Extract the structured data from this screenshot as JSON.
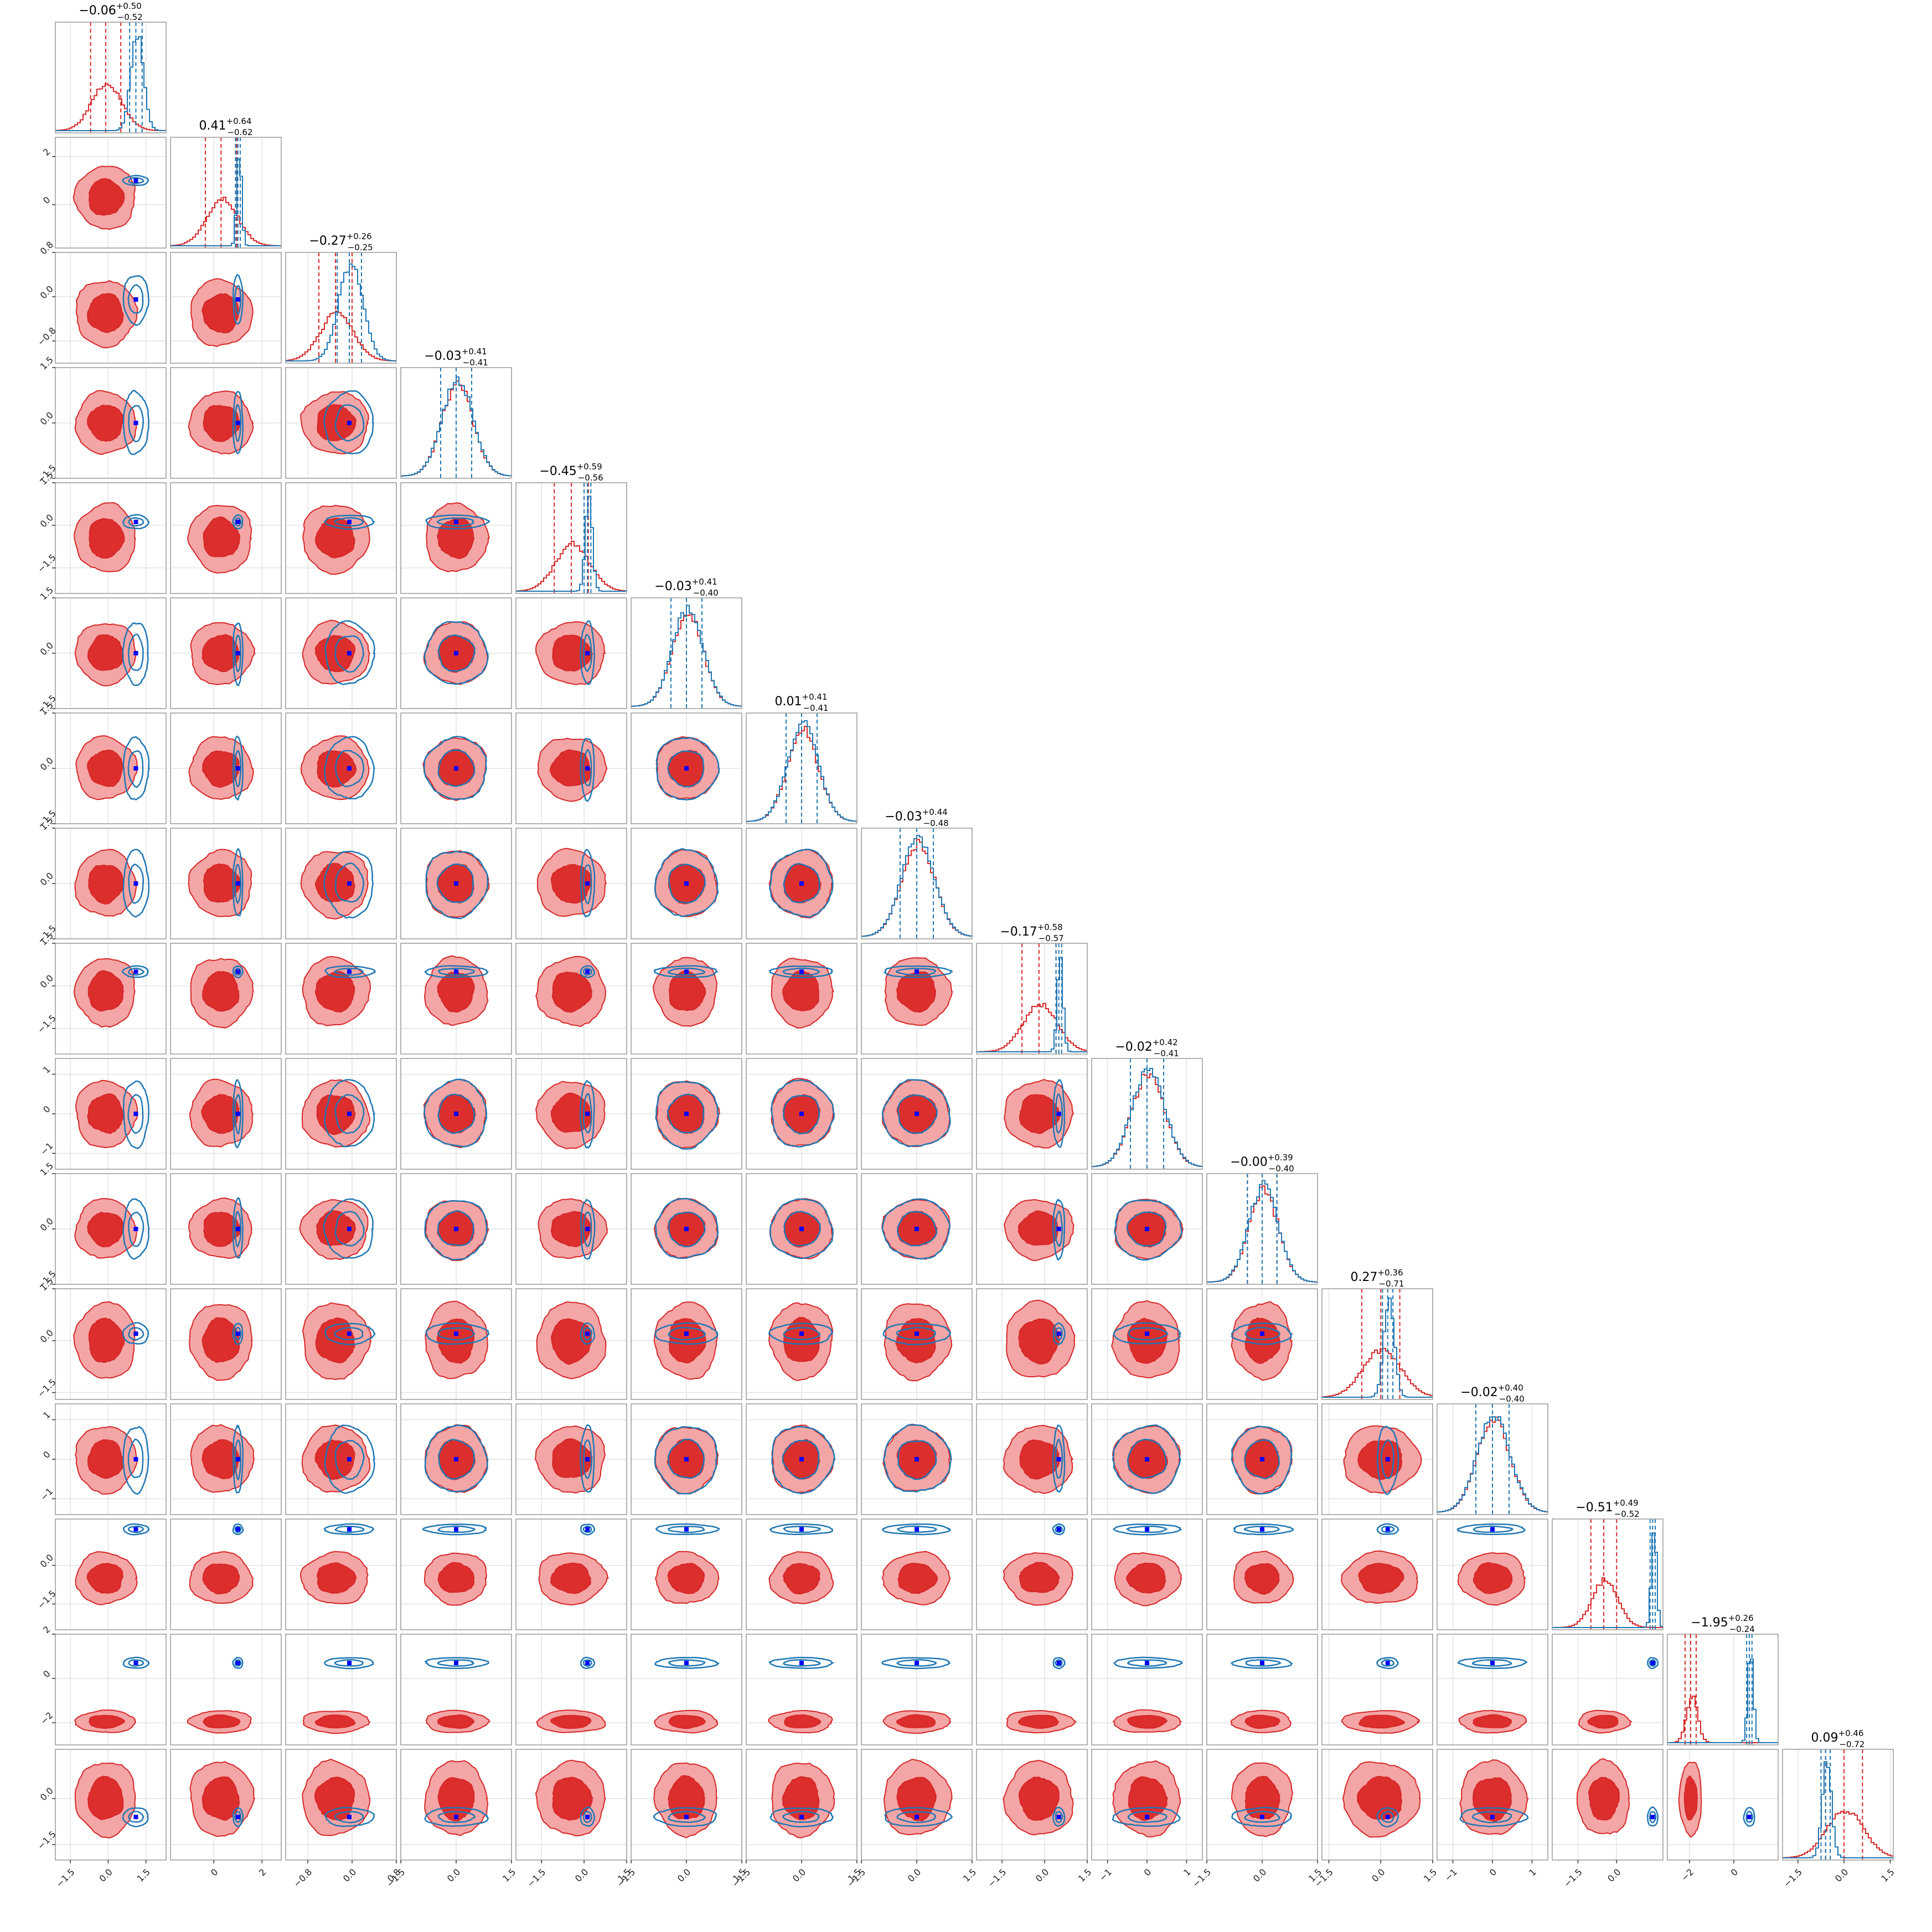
{
  "chart_data": {
    "type": "corner",
    "grid": true,
    "legend": "none",
    "colors": {
      "posterior_a": "#d62728",
      "posterior_b": "#1f77b4",
      "marker": "#0000ff"
    },
    "series": [
      {
        "name": "",
        "color": "#d62728"
      },
      {
        "name": "",
        "color": "#1f77b4"
      }
    ],
    "parameters": [
      {
        "title_median": "−0.06",
        "title_plus": "+0.50",
        "title_minus": "−0.52",
        "range": [
          -2.1,
          2.3
        ],
        "xticks": [
          -1.5,
          0.0,
          1.5
        ],
        "xtick_labels": [
          "−1.5",
          "0.0",
          "1.5"
        ],
        "yticks": [],
        "ytick_labels": [],
        "a": {
          "mu": -0.1,
          "sigma": 0.6
        },
        "b": {
          "mu": 1.1,
          "sigma": 0.25
        }
      },
      {
        "title_median": "0.41",
        "title_plus": "+0.64",
        "title_minus": "−0.62",
        "range": [
          -1.8,
          2.8
        ],
        "xticks": [
          0,
          2
        ],
        "xtick_labels": [
          "0",
          "2"
        ],
        "yticks": [
          2,
          0
        ],
        "ytick_labels": [
          "2",
          "0"
        ],
        "a": {
          "mu": 0.3,
          "sigma": 0.65
        },
        "b": {
          "mu": 1.0,
          "sigma": 0.1
        }
      },
      {
        "title_median": "−0.27",
        "title_plus": "+0.26",
        "title_minus": "−0.25",
        "range": [
          -1.2,
          0.8
        ],
        "xticks": [
          -0.8,
          0.0,
          0.8
        ],
        "xtick_labels": [
          "−0.8",
          "0.0",
          "0.8"
        ],
        "yticks": [
          0.8,
          0.0,
          -0.8
        ],
        "ytick_labels": [
          "0.8",
          "0.0",
          "−0.8"
        ],
        "a": {
          "mu": -0.3,
          "sigma": 0.3
        },
        "b": {
          "mu": -0.05,
          "sigma": 0.22
        }
      },
      {
        "title_median": "−0.03",
        "title_plus": "+0.41",
        "title_minus": "−0.41",
        "range": [
          -1.5,
          1.5
        ],
        "xticks": [
          -1.5,
          0.0,
          1.5
        ],
        "xtick_labels": [
          "−1.5",
          "0.0",
          "1.5"
        ],
        "yticks": [
          1.5,
          0.0,
          -1.5
        ],
        "ytick_labels": [
          "1.5",
          "0.0",
          "−1.5"
        ],
        "a": {
          "mu": 0.0,
          "sigma": 0.42
        },
        "b": {
          "mu": 0.0,
          "sigma": 0.42
        }
      },
      {
        "title_median": "−0.45",
        "title_plus": "+0.59",
        "title_minus": "−0.56",
        "range": [
          -2.4,
          1.5
        ],
        "xticks": [
          -1.5,
          0.0,
          1.5
        ],
        "xtick_labels": [
          "−1.5",
          "0.0",
          "1.5"
        ],
        "yticks": [
          1.5,
          0.0,
          -1.5
        ],
        "ytick_labels": [
          "1.5",
          "0.0",
          "−1.5"
        ],
        "a": {
          "mu": -0.45,
          "sigma": 0.6
        },
        "b": {
          "mu": 0.12,
          "sigma": 0.12
        }
      },
      {
        "title_median": "−0.03",
        "title_plus": "+0.41",
        "title_minus": "−0.40",
        "range": [
          -1.5,
          1.5
        ],
        "xticks": [
          -1.5,
          0.0,
          1.5
        ],
        "xtick_labels": [
          "−1.5",
          "0.0",
          "1.5"
        ],
        "yticks": [
          1.5,
          0.0,
          -1.5
        ],
        "ytick_labels": [
          "1.5",
          "0.0",
          "−1.5"
        ],
        "a": {
          "mu": 0.0,
          "sigma": 0.42
        },
        "b": {
          "mu": 0.0,
          "sigma": 0.42
        }
      },
      {
        "title_median": "0.01",
        "title_plus": "+0.41",
        "title_minus": "−0.41",
        "range": [
          -1.5,
          1.5
        ],
        "xticks": [
          -1.5,
          0.0,
          1.5
        ],
        "xtick_labels": [
          "−1.5",
          "0.0",
          "1.5"
        ],
        "yticks": [
          1.5,
          0.0,
          -1.5
        ],
        "ytick_labels": [
          "1.5",
          "0.0",
          "−1.5"
        ],
        "a": {
          "mu": 0.0,
          "sigma": 0.42
        },
        "b": {
          "mu": 0.0,
          "sigma": 0.42
        }
      },
      {
        "title_median": "−0.03",
        "title_plus": "+0.44",
        "title_minus": "−0.48",
        "range": [
          -1.5,
          1.5
        ],
        "xticks": [
          -1.5,
          0.0,
          1.5
        ],
        "xtick_labels": [
          "−1.5",
          "0.0",
          "1.5"
        ],
        "yticks": [
          1.5,
          0.0,
          -1.5
        ],
        "ytick_labels": [
          "1.5",
          "0.0",
          "−1.5"
        ],
        "a": {
          "mu": 0.0,
          "sigma": 0.45
        },
        "b": {
          "mu": 0.0,
          "sigma": 0.45
        }
      },
      {
        "title_median": "−0.17",
        "title_plus": "+0.58",
        "title_minus": "−0.57",
        "range": [
          -2.4,
          1.5
        ],
        "xticks": [
          -1.5,
          0.0,
          1.5
        ],
        "xtick_labels": [
          "−1.5",
          "0.0",
          "1.5"
        ],
        "yticks": [
          1.5,
          0.0,
          -1.5
        ],
        "ytick_labels": [
          "1.5",
          "0.0",
          "−1.5"
        ],
        "a": {
          "mu": -0.2,
          "sigma": 0.6
        },
        "b": {
          "mu": 0.5,
          "sigma": 0.1
        }
      },
      {
        "title_median": "−0.02",
        "title_plus": "+0.42",
        "title_minus": "−0.41",
        "range": [
          -1.4,
          1.4
        ],
        "xticks": [
          -1,
          0,
          1
        ],
        "xtick_labels": [
          "−1",
          "0",
          "1"
        ],
        "yticks": [
          1,
          0,
          -1
        ],
        "ytick_labels": [
          "1",
          "0",
          "−1"
        ],
        "a": {
          "mu": 0.0,
          "sigma": 0.42
        },
        "b": {
          "mu": 0.0,
          "sigma": 0.42
        }
      },
      {
        "title_median": "−0.00",
        "title_plus": "+0.39",
        "title_minus": "−0.40",
        "range": [
          -1.5,
          1.5
        ],
        "xticks": [
          -1.5,
          0.0,
          1.5
        ],
        "xtick_labels": [
          "−1.5",
          "0.0",
          "1.5"
        ],
        "yticks": [
          1.5,
          0.0,
          -1.5
        ],
        "ytick_labels": [
          "1.5",
          "0.0",
          "−1.5"
        ],
        "a": {
          "mu": 0.0,
          "sigma": 0.4
        },
        "b": {
          "mu": 0.0,
          "sigma": 0.4
        }
      },
      {
        "title_median": "0.27",
        "title_plus": "+0.36",
        "title_minus": "−0.71",
        "range": [
          -1.7,
          1.5
        ],
        "xticks": [
          -1.5,
          0.0,
          1.5
        ],
        "xtick_labels": [
          "−1.5",
          "0.0",
          "1.5"
        ],
        "yticks": [
          1.5,
          0.0,
          -1.5
        ],
        "ytick_labels": [
          "1.5",
          "0.0",
          "−1.5"
        ],
        "a": {
          "mu": 0.0,
          "sigma": 0.55
        },
        "b": {
          "mu": 0.2,
          "sigma": 0.15
        }
      },
      {
        "title_median": "−0.02",
        "title_plus": "+0.40",
        "title_minus": "−0.40",
        "range": [
          -1.4,
          1.4
        ],
        "xticks": [
          -1,
          0,
          1
        ],
        "xtick_labels": [
          "−1",
          "0",
          "1"
        ],
        "yticks": [
          1,
          0,
          -1
        ],
        "ytick_labels": [
          "1",
          "0",
          "−1"
        ],
        "a": {
          "mu": 0.0,
          "sigma": 0.42
        },
        "b": {
          "mu": 0.0,
          "sigma": 0.42
        }
      },
      {
        "title_median": "−0.51",
        "title_plus": "+0.49",
        "title_minus": "−0.52",
        "range": [
          -2.5,
          1.8
        ],
        "xticks": [
          -1.5,
          0.0
        ],
        "xtick_labels": [
          "−1.5",
          "0.0"
        ],
        "yticks": [
          0.0,
          -1.5
        ],
        "ytick_labels": [
          "0.0",
          "−1.5"
        ],
        "a": {
          "mu": -0.5,
          "sigma": 0.5
        },
        "b": {
          "mu": 1.4,
          "sigma": 0.1
        }
      },
      {
        "title_median": "−1.95",
        "title_plus": "+0.26",
        "title_minus": "−0.24",
        "range": [
          -3.0,
          2.0
        ],
        "xticks": [
          -2,
          0
        ],
        "xtick_labels": [
          "−2",
          "0"
        ],
        "yticks": [
          2,
          0,
          -2
        ],
        "ytick_labels": [
          "2",
          "0",
          "−2"
        ],
        "a": {
          "mu": -1.95,
          "sigma": 0.25
        },
        "b": {
          "mu": 0.7,
          "sigma": 0.12
        }
      },
      {
        "title_median": "0.09",
        "title_plus": "+0.46",
        "title_minus": "−0.72",
        "range": [
          -2.0,
          1.6
        ],
        "xticks": [
          -1.5,
          0.0,
          1.5
        ],
        "xtick_labels": [
          "−1.5",
          "0.0",
          "1.5"
        ],
        "yticks": [
          0.0,
          -1.5
        ],
        "ytick_labels": [
          "0.0",
          "−1.5"
        ],
        "a": {
          "mu": 0.0,
          "sigma": 0.6
        },
        "b": {
          "mu": -0.6,
          "sigma": 0.15
        }
      }
    ]
  }
}
